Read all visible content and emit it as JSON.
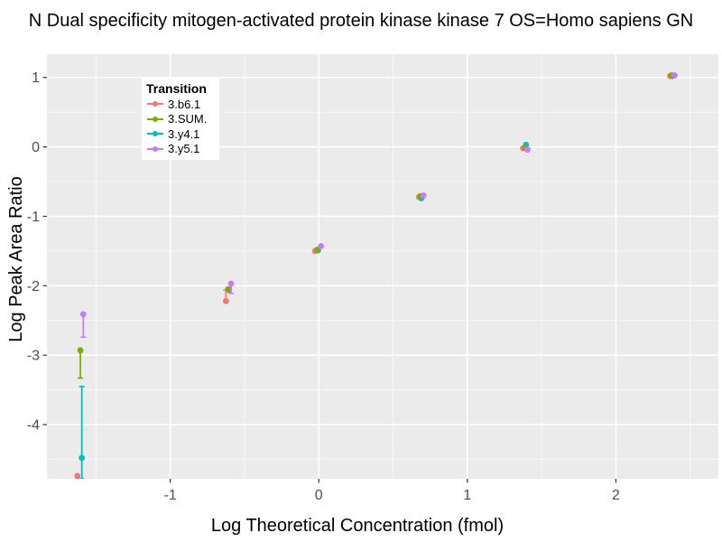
{
  "colors": {
    "panel_bg": "#EBEBEB",
    "grid_major": "#FFFFFF",
    "grid_minor": "#FFFFFF",
    "tick_mark": "#333333",
    "tick_label": "#4D4D4D",
    "legend_bg": "#FFFFFF"
  },
  "chart_data": {
    "type": "scatter",
    "title": "N Dual specificity mitogen-activated protein kinase kinase 7 OS=Homo sapiens GN",
    "xlabel": "Log Theoretical Concentration (fmol)",
    "ylabel": "Log Peak Area Ratio",
    "legend_title": "Transition",
    "legend_position": "inside-top-left",
    "grid": true,
    "xlim": [
      -1.83,
      2.69
    ],
    "ylim": [
      -4.78,
      1.335
    ],
    "x_major_ticks": [
      -1,
      0,
      1,
      2
    ],
    "x_minor_ticks": [
      -1.5,
      -0.5,
      0.5,
      1.5,
      2.5
    ],
    "y_major_ticks": [
      1,
      0,
      -1,
      -2,
      -3,
      -4
    ],
    "y_minor_ticks": [
      0.5,
      -0.5,
      -1.5,
      -2.5,
      -3.5,
      -4.5
    ],
    "series": [
      {
        "name": "3.b6.1",
        "color": "#F8766D",
        "z": 0,
        "points": [
          {
            "x": -1.625,
            "y": -4.74
          },
          {
            "x": -0.625,
            "y": -2.22,
            "range": [
              -2.06,
              -2.23
            ]
          },
          {
            "x": -0.025,
            "y": -1.5
          },
          {
            "x": 0.675,
            "y": -0.72
          },
          {
            "x": 1.375,
            "y": -0.02
          },
          {
            "x": 2.365,
            "y": 1.02
          }
        ]
      },
      {
        "name": "3.SUM.",
        "color": "#7CAE00",
        "z": 2,
        "points": [
          {
            "x": -1.605,
            "y": -2.93,
            "range": [
              -2.93,
              -3.33
            ]
          },
          {
            "x": -0.61,
            "y": -2.05
          },
          {
            "x": -0.01,
            "y": -1.48
          },
          {
            "x": 0.685,
            "y": -0.71
          },
          {
            "x": 1.39,
            "y": -0.02
          },
          {
            "x": 2.375,
            "y": 1.03
          }
        ]
      },
      {
        "name": "3.y4.1",
        "color": "#00BFC4",
        "z": 1,
        "points": [
          {
            "x": -1.595,
            "y": -4.48,
            "range": [
              -3.45,
              -4.78
            ]
          },
          {
            "x": -0.605,
            "y": -2.06
          },
          {
            "x": -0.005,
            "y": -1.49
          },
          {
            "x": 0.69,
            "y": -0.74
          },
          {
            "x": 1.395,
            "y": 0.03
          },
          {
            "x": 2.38,
            "y": 1.02
          }
        ]
      },
      {
        "name": "3.y5.1",
        "color": "#C77CFF",
        "z": 3,
        "points": [
          {
            "x": -1.585,
            "y": -2.41,
            "range": [
              -2.41,
              -2.74
            ]
          },
          {
            "x": -0.59,
            "y": -1.97,
            "range": [
              -1.97,
              -2.11
            ]
          },
          {
            "x": 0.015,
            "y": -1.43
          },
          {
            "x": 0.705,
            "y": -0.7
          },
          {
            "x": 1.405,
            "y": -0.04
          },
          {
            "x": 2.395,
            "y": 1.03
          }
        ]
      }
    ]
  }
}
